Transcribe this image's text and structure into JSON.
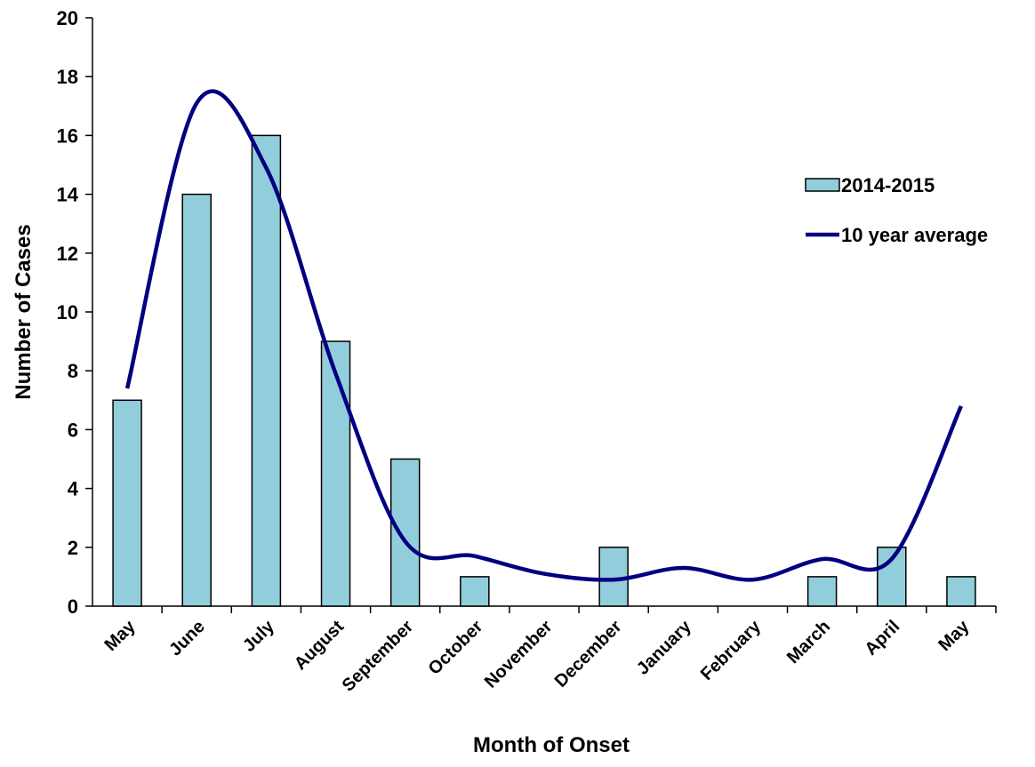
{
  "chart_data": {
    "type": "bar_line",
    "x_label": "Month of Onset",
    "y_label": "Number of Cases",
    "categories": [
      "May",
      "June",
      "July",
      "August",
      "September",
      "October",
      "November",
      "December",
      "January",
      "February",
      "March",
      "April",
      "May"
    ],
    "series": [
      {
        "name": "2014-2015",
        "type": "bar",
        "color": "#92cddc",
        "values": [
          7,
          14,
          16,
          9,
          5,
          1,
          0,
          2,
          0,
          0,
          1,
          2,
          1
        ]
      },
      {
        "name": "10 year average",
        "type": "line",
        "color": "#000080",
        "values": [
          7.4,
          17.1,
          14.9,
          7.9,
          2.2,
          1.7,
          1.1,
          0.9,
          1.3,
          0.9,
          1.6,
          1.6,
          6.8
        ]
      }
    ],
    "ylim": [
      0,
      20
    ],
    "yticks": [
      0,
      2,
      4,
      6,
      8,
      10,
      12,
      14,
      16,
      18,
      20
    ],
    "legend": "right"
  }
}
